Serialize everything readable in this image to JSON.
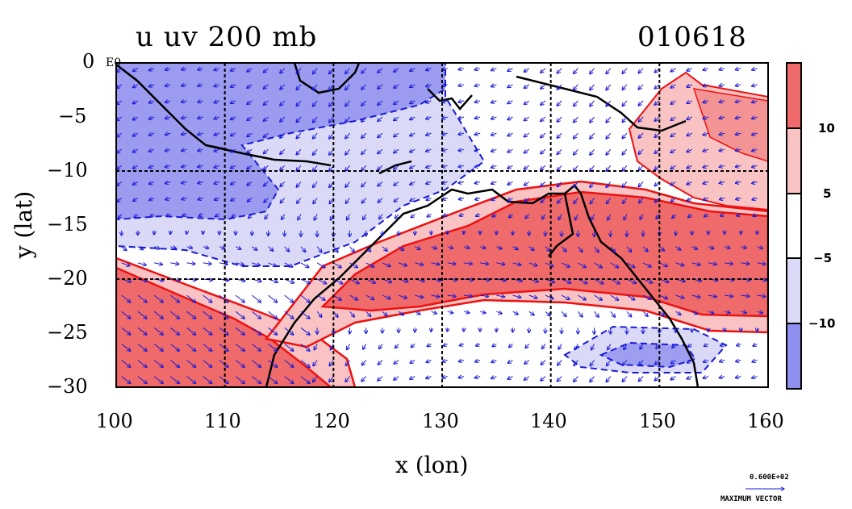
{
  "title": {
    "left": "u uv 200 mb",
    "right": "010618"
  },
  "axes": {
    "xlabel": "x (lon)",
    "ylabel": "y (lat)",
    "x_ticks": [
      "100",
      "110",
      "120",
      "130",
      "140",
      "150",
      "160"
    ],
    "y_ticks": [
      "0",
      "−5",
      "−10",
      "−15",
      "−20",
      "−25",
      "−30"
    ],
    "corner_mark": "E0"
  },
  "colorbar": {
    "labels": [
      "10",
      "5",
      "−5",
      "−10"
    ],
    "colors": [
      "#ef6b6b",
      "#f9c3c3",
      "#ffffff",
      "#dadaf7",
      "#8f8fef"
    ]
  },
  "reference_vector": {
    "value": "0.600E+02",
    "label": "MAXIMUM VECTOR"
  },
  "chart_data": {
    "type": "heatmap",
    "variable": "u",
    "vectors": "uv",
    "level": "200 mb",
    "date": "010618",
    "xlim": [
      100,
      160
    ],
    "ylim": [
      -30,
      0
    ],
    "grid": true,
    "shading_levels": [
      -10,
      -5,
      5,
      10
    ],
    "regions": [
      {
        "name": "strong westerly jet (> 10)",
        "level": "> 10",
        "lon_range": [
          120,
          160
        ],
        "lat_range": [
          -27,
          -11
        ]
      },
      {
        "name": "westerly band SW (> 10)",
        "level": "> 10",
        "lon_range": [
          100,
          115
        ],
        "lat_range": [
          -30,
          -19
        ]
      },
      {
        "name": "westerly NE (5 to 10)",
        "level": "5 to 10",
        "lon_range": [
          147,
          160
        ],
        "lat_range": [
          -13,
          0
        ]
      },
      {
        "name": "easterly NW (< -10)",
        "level": "< -10",
        "lon_range": [
          100,
          132
        ],
        "lat_range": [
          -17,
          0
        ]
      },
      {
        "name": "easterly SE (< -10)",
        "level": "< -10",
        "lon_range": [
          145,
          154
        ],
        "lat_range": [
          -27,
          -25
        ]
      }
    ]
  }
}
